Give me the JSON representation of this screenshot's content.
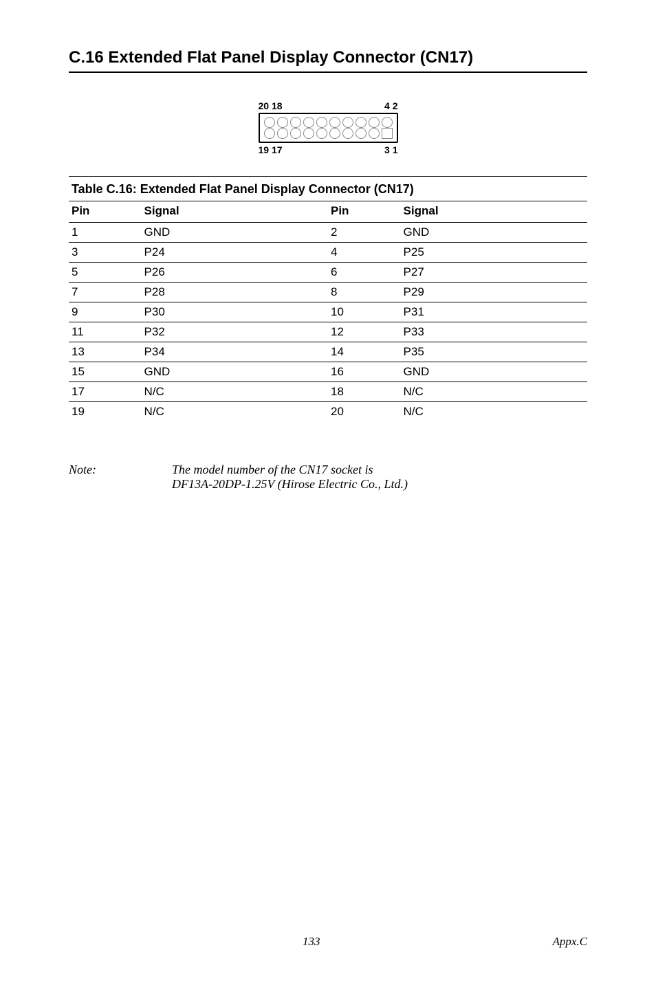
{
  "section": {
    "title": "C.16 Extended Flat Panel Display Connector (CN17)"
  },
  "diagram": {
    "top_left": "20 18",
    "top_right": "4  2",
    "bottom_left": "19 17",
    "bottom_right": "3  1",
    "row_count": 2,
    "col_count": 10,
    "pin1_shape": "square",
    "circle_color": "#888888",
    "border_color": "#000000"
  },
  "table": {
    "title": "Table C.16: Extended Flat Panel Display Connector (CN17)",
    "headers": [
      "Pin",
      "Signal",
      "Pin",
      "Signal"
    ],
    "rows": [
      [
        "1",
        "GND",
        "2",
        "GND"
      ],
      [
        "3",
        "P24",
        "4",
        "P25"
      ],
      [
        "5",
        "P26",
        "6",
        "P27"
      ],
      [
        "7",
        "P28",
        "8",
        "P29"
      ],
      [
        "9",
        "P30",
        "10",
        "P31"
      ],
      [
        "11",
        "P32",
        "12",
        "P33"
      ],
      [
        "13",
        "P34",
        "14",
        "P35"
      ],
      [
        "15",
        "GND",
        "16",
        "GND"
      ],
      [
        "17",
        "N/C",
        "18",
        "N/C"
      ],
      [
        "19",
        "N/C",
        "20",
        "N/C"
      ]
    ]
  },
  "note": {
    "label": "Note:",
    "line1": "The model number of the CN17 socket is",
    "line2": "DF13A-20DP-1.25V (Hirose Electric Co., Ltd.)"
  },
  "footer": {
    "page": "133",
    "ref": "Appx.C"
  }
}
